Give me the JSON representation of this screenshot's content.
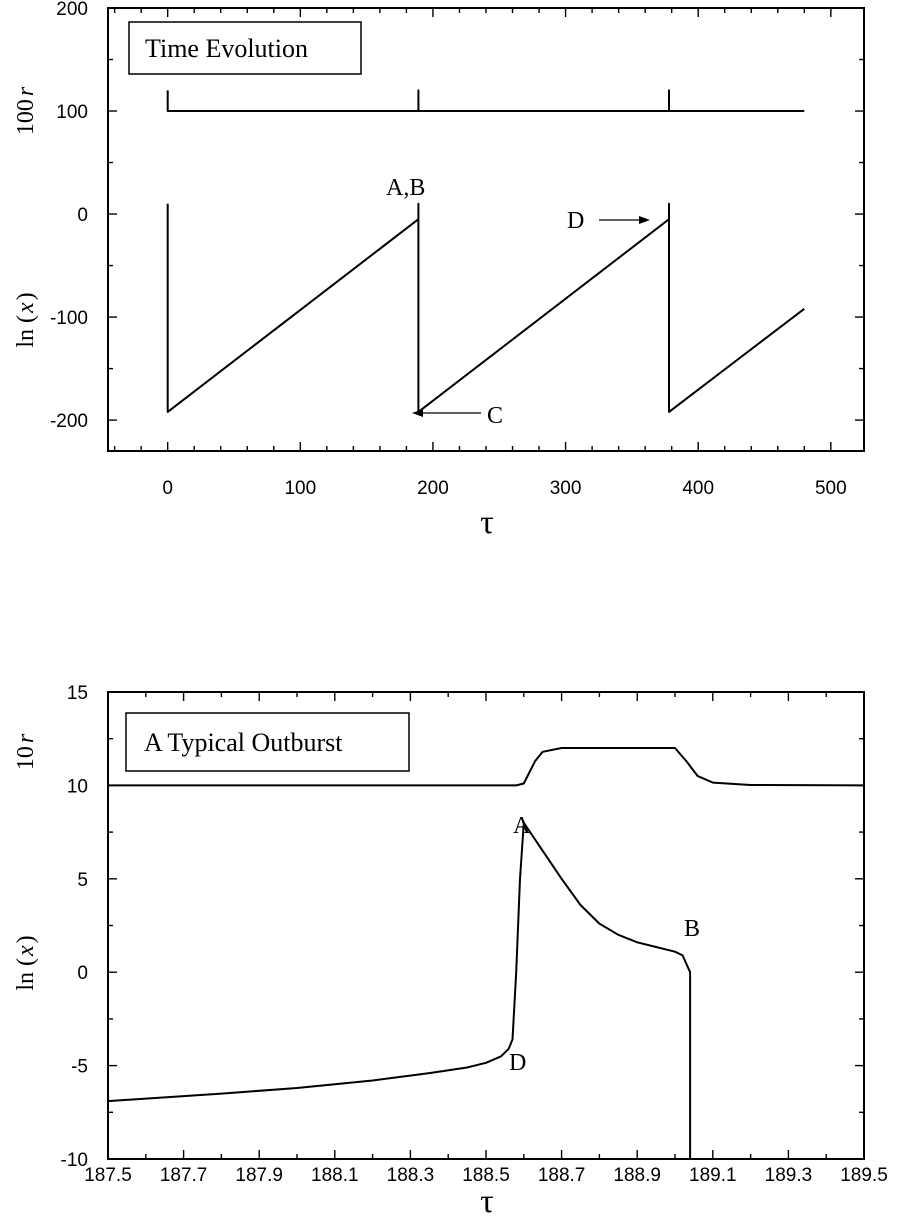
{
  "chart_data": [
    {
      "type": "line",
      "title": "Time Evolution",
      "xlabel": "τ",
      "ylabels": [
        {
          "base": "100",
          "var": "r"
        },
        {
          "base": "ln (",
          "var": "x",
          "close": ")"
        }
      ],
      "xlim": [
        -45,
        525
      ],
      "ylim": [
        -230,
        200
      ],
      "x_ticks": [
        "0",
        "100",
        "200",
        "300",
        "400",
        "500"
      ],
      "x_tick_values": [
        0,
        100,
        200,
        300,
        400,
        500
      ],
      "y_ticks": [
        "200",
        "100",
        "0",
        "-100",
        "-200"
      ],
      "y_tick_values": [
        200,
        100,
        0,
        -100,
        -200
      ],
      "series": [
        {
          "x": [
            0,
            0,
            189,
            189,
            189,
            378,
            378,
            378,
            480
          ],
          "y": [
            10,
            -192,
            -5,
            10,
            -192,
            -5,
            10,
            -192,
            -92
          ]
        },
        {
          "x": [
            0,
            0,
            0,
            189,
            189,
            189,
            378,
            378,
            378,
            480
          ],
          "y": [
            120,
            100,
            100,
            100,
            120,
            100,
            100,
            120,
            100,
            100
          ]
        }
      ],
      "annotations": [
        {
          "text": "A,B",
          "x": 189,
          "y": 12
        },
        {
          "text": "C",
          "x": 189,
          "y": -192
        },
        {
          "text": "D",
          "x": 378,
          "y": -5
        }
      ]
    },
    {
      "type": "line",
      "title": "A Typical Outburst",
      "xlabel": "τ",
      "ylabels": [
        {
          "base": "10",
          "var": "r"
        },
        {
          "base": "ln (",
          "var": "x",
          "close": ")"
        }
      ],
      "xlim": [
        187.5,
        189.5
      ],
      "ylim": [
        -10,
        15
      ],
      "x_ticks": [
        "187.5",
        "187.7",
        "187.9",
        "188.1",
        "188.3",
        "188.5",
        "188.7",
        "188.9",
        "189.1",
        "189.3",
        "189.5"
      ],
      "x_tick_values": [
        187.5,
        187.7,
        187.9,
        188.1,
        188.3,
        188.5,
        188.7,
        188.9,
        189.1,
        189.3,
        189.5
      ],
      "y_ticks": [
        "15",
        "10",
        "5",
        "0",
        "-5",
        "-10"
      ],
      "y_tick_values": [
        15,
        10,
        5,
        0,
        -5,
        -10
      ],
      "series": [
        {
          "x": [
            187.5,
            187.8,
            188.0,
            188.2,
            188.35,
            188.45,
            188.5,
            188.54,
            188.56,
            188.57,
            188.58,
            188.59,
            188.6,
            188.61,
            188.65,
            188.7,
            188.75,
            188.8,
            188.85,
            188.9,
            188.95,
            188.98,
            189.0,
            189.02,
            189.04,
            189.04
          ],
          "y": [
            -6.9,
            -6.5,
            -6.2,
            -5.8,
            -5.4,
            -5.1,
            -4.85,
            -4.5,
            -4.1,
            -3.6,
            0.0,
            5.0,
            8.0,
            7.7,
            6.5,
            5.0,
            3.6,
            2.6,
            2.0,
            1.6,
            1.35,
            1.2,
            1.1,
            0.9,
            0.0,
            -10.0
          ]
        },
        {
          "x": [
            187.5,
            188.58,
            188.6,
            188.63,
            188.65,
            188.7,
            188.8,
            188.95,
            189.0,
            189.03,
            189.06,
            189.1,
            189.2,
            189.5
          ],
          "y": [
            10.0,
            10.0,
            10.1,
            11.3,
            11.8,
            12.0,
            12.0,
            12.0,
            12.0,
            11.3,
            10.5,
            10.15,
            10.02,
            10.0
          ]
        }
      ],
      "annotations": [
        {
          "text": "A",
          "x": 188.6,
          "y": 8.2
        },
        {
          "text": "B",
          "x": 189.04,
          "y": 1.0
        },
        {
          "text": "D",
          "x": 188.56,
          "y": -4.4
        }
      ]
    }
  ]
}
